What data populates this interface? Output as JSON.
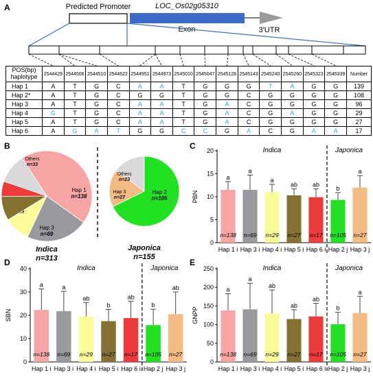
{
  "panel_labels": {
    "a": "A",
    "b": "B",
    "c": "C",
    "d": "D",
    "e": "E"
  },
  "gene": {
    "promoter_label": "Predicted Promoter",
    "gene_name": "LOC_Os02g05310",
    "exon_label": "Exon",
    "utr_label": "3'UTR"
  },
  "table": {
    "header_label_top": "POS(bp)",
    "header_label_bottom": "haplotype",
    "positions": [
      "2544429",
      "2544506",
      "2544510",
      "2544622",
      "2544951",
      "2544973",
      "2545010",
      "2545047",
      "2545128",
      "2545143",
      "2545240",
      "2545260",
      "2545323",
      "2545339"
    ],
    "number_label": "Number",
    "colors": {
      "derived": "#29a8e0"
    },
    "rows": [
      {
        "name": "Hap 1",
        "alleles": [
          "A",
          "T",
          "G",
          "C",
          "A",
          "A",
          "T",
          "G",
          "G",
          "G",
          "T",
          "A",
          "G",
          "G"
        ],
        "blue": [
          4,
          5,
          10,
          11
        ],
        "number": "139"
      },
      {
        "name": "Hap 2*",
        "alleles": [
          "A",
          "T",
          "G",
          "C",
          "G",
          "G",
          "T",
          "G",
          "G",
          "C",
          "G",
          "G",
          "G",
          "G"
        ],
        "blue": [],
        "number": "108"
      },
      {
        "name": "Hap 3",
        "alleles": [
          "A",
          "T",
          "G",
          "C",
          "A",
          "A",
          "T",
          "G",
          "A",
          "C",
          "G",
          "G",
          "G",
          "G"
        ],
        "blue": [
          4,
          5,
          8
        ],
        "number": "96"
      },
      {
        "name": "Hap 4",
        "alleles": [
          "G",
          "T",
          "G",
          "C",
          "A",
          "A",
          "T",
          "G",
          "A",
          "C",
          "G",
          "A",
          "G",
          "G"
        ],
        "blue": [
          0,
          4,
          5,
          8,
          11
        ],
        "number": "29"
      },
      {
        "name": "Hap 5",
        "alleles": [
          "A",
          "T",
          "G",
          "C",
          "A",
          "A",
          "T",
          "G",
          "A",
          "C",
          "G",
          "G",
          "G",
          "G"
        ],
        "blue": [
          4,
          5,
          8
        ],
        "number": "27"
      },
      {
        "name": "Hap 6",
        "alleles": [
          "A",
          "G",
          "A",
          "T",
          "G",
          "G",
          "C",
          "C",
          "G",
          "A",
          "C",
          "G",
          "A",
          "A"
        ],
        "blue": [
          1,
          2,
          3,
          6,
          7,
          9,
          12,
          13
        ],
        "number": "17"
      }
    ]
  },
  "pie_text": {
    "indica_label": "Indica",
    "indica_n": "n=313",
    "japonica_label": "Japonica",
    "japonica_n": "n=155"
  },
  "chart_data": [
    {
      "type": "pie",
      "title": "Indica",
      "slices": [
        {
          "name": "Hap 1",
          "label": "n=138",
          "value": 138,
          "color": "#f8a5a5"
        },
        {
          "name": "Hap 3",
          "label": "n=69",
          "value": 69,
          "color": "#9a9a9e"
        },
        {
          "name": "Hap 4",
          "label": "n=29",
          "value": 29,
          "color": "#fbfb9a"
        },
        {
          "name": "Hap 5",
          "label": "n=27",
          "value": 27,
          "color": "#857130"
        },
        {
          "name": "Hap 6",
          "label": "n=17",
          "value": 17,
          "color": "#ee3b3b"
        },
        {
          "name": "Others",
          "label": "n=33",
          "value": 33,
          "color": "#d9d9d9"
        }
      ]
    },
    {
      "type": "pie",
      "title": "Japonica",
      "slices": [
        {
          "name": "Hap 2",
          "label": "n=105",
          "value": 105,
          "color": "#22e022"
        },
        {
          "name": "Hap 3",
          "label": "n=27",
          "value": 27,
          "color": "#f4bb82"
        },
        {
          "name": "Others",
          "label": "n=23",
          "value": 23,
          "color": "#d9d9d9"
        }
      ]
    },
    {
      "type": "bar",
      "panel": "C",
      "ylabel": "PBN",
      "ylim": [
        0,
        20
      ],
      "yticks": [
        0,
        5,
        10,
        15,
        20
      ],
      "groups": [
        "Indica",
        "Japonica"
      ],
      "categories": [
        "Hap 1 i",
        "Hap 3 i",
        "Hap 4 i",
        "Hap 5 i",
        "Hap 6 i",
        "Hap 2 j",
        "Hap 3 j"
      ],
      "values": [
        11.5,
        11.5,
        11.0,
        10.3,
        9.9,
        9.3,
        12.0
      ],
      "errors": [
        1.8,
        3.2,
        1.7,
        1.4,
        1.8,
        1.6,
        2.6
      ],
      "letters": [
        "a",
        "a",
        "a",
        "ab",
        "ab",
        "b",
        "a"
      ],
      "n_labels": [
        "n=138",
        "n=69",
        "n=29",
        "n=27",
        "n=17",
        "n=105",
        "n=27"
      ],
      "colors": [
        "#f8a5a5",
        "#9a9a9e",
        "#fbfb9a",
        "#857130",
        "#ee3b3b",
        "#22e022",
        "#f4bb82"
      ]
    },
    {
      "type": "bar",
      "panel": "D",
      "ylabel": "SBN",
      "ylim": [
        0,
        40
      ],
      "yticks": [
        0,
        10,
        20,
        30,
        40
      ],
      "groups": [
        "Indica",
        "Japonica"
      ],
      "categories": [
        "Hap 1 i",
        "Hap 3 i",
        "Hap 4 i",
        "Hap 5 i",
        "Hap 6 i",
        "Hap 2 j",
        "Hap 3 j"
      ],
      "values": [
        22.3,
        21.8,
        19.5,
        17.5,
        18.8,
        15.8,
        20.5
      ],
      "errors": [
        9.0,
        8.5,
        6.0,
        5.0,
        7.2,
        6.8,
        9.5
      ],
      "letters": [
        "a",
        "a",
        "ab",
        "b",
        "ab",
        "b",
        "ab"
      ],
      "n_labels": [
        "n=138",
        "n=69",
        "n=29",
        "n=27",
        "n=17",
        "n=105",
        "n=27"
      ],
      "colors": [
        "#f8a5a5",
        "#9a9a9e",
        "#fbfb9a",
        "#857130",
        "#ee3b3b",
        "#22e022",
        "#f4bb82"
      ]
    },
    {
      "type": "bar",
      "panel": "E",
      "ylabel": "GNPP",
      "ylim": [
        0,
        250
      ],
      "yticks": [
        0,
        50,
        100,
        150,
        200,
        250
      ],
      "groups": [
        "Indica",
        "Japonica"
      ],
      "categories": [
        "Hap 1 i",
        "Hap 3 i",
        "Hap 4 i",
        "Hap 5 i",
        "Hap 6 i",
        "Hap 2 j",
        "Hap 3 j"
      ],
      "values": [
        138,
        141,
        130,
        115,
        122,
        101,
        131
      ],
      "errors": [
        45,
        70,
        63,
        25,
        35,
        32,
        45
      ],
      "letters": [
        "a",
        "a",
        "ab",
        "ab",
        "ab",
        "b",
        "a"
      ],
      "n_labels": [
        "n=138",
        "n=69",
        "n=29",
        "n=27",
        "n=17",
        "n=105",
        "n=27"
      ],
      "colors": [
        "#f8a5a5",
        "#9a9a9e",
        "#fbfb9a",
        "#857130",
        "#ee3b3b",
        "#22e022",
        "#f4bb82"
      ]
    }
  ]
}
